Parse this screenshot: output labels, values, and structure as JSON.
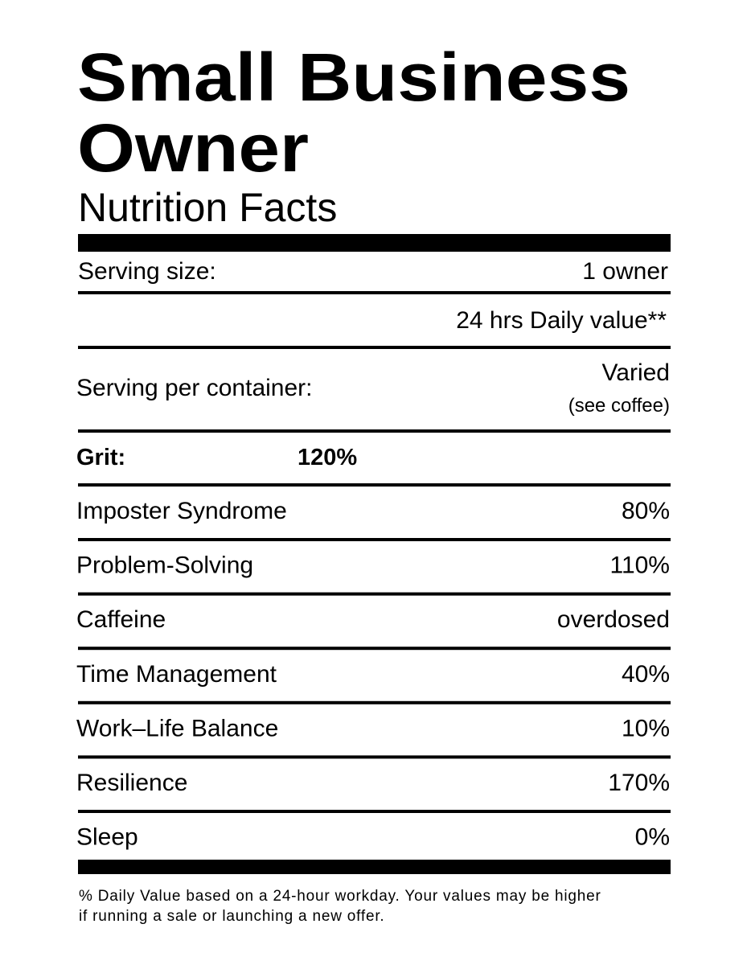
{
  "header": {
    "title_lines": [
      "Small Business",
      "Owner"
    ],
    "subtitle": "Nutrition Facts"
  },
  "serving_size": {
    "label": "Serving size:",
    "value": "1 owner"
  },
  "daily_value_header": "24 hrs Daily value**",
  "servings_per_container": {
    "label": "Serving per container:",
    "value": "Varied",
    "note": "(see coffee)"
  },
  "highlight": {
    "label": "Grit:",
    "value": "120%"
  },
  "rows": [
    {
      "label": "Imposter Syndrome",
      "value": "80%"
    },
    {
      "label": "Problem-Solving",
      "value": "110%"
    },
    {
      "label": "Caffeine",
      "value": "overdosed"
    },
    {
      "label": "Time Management",
      "value": "40%"
    },
    {
      "label": "Work–Life Balance",
      "value": "10%"
    },
    {
      "label": "Resilience",
      "value": "170%"
    },
    {
      "label": "Sleep",
      "value": "0%"
    }
  ],
  "footnote_lines": [
    "% Daily Value based on a 24-hour workday. Your values may be higher",
    "if running a sale or launching a new offer."
  ]
}
